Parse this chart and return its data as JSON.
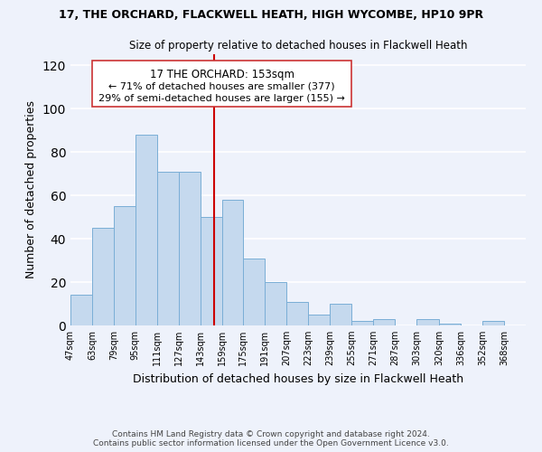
{
  "title": "17, THE ORCHARD, FLACKWELL HEATH, HIGH WYCOMBE, HP10 9PR",
  "subtitle": "Size of property relative to detached houses in Flackwell Heath",
  "xlabel": "Distribution of detached houses by size in Flackwell Heath",
  "ylabel": "Number of detached properties",
  "bar_color": "#c5d9ee",
  "bar_edge_color": "#7aaed6",
  "background_color": "#eef2fb",
  "grid_color": "white",
  "vline_value": 153,
  "vline_color": "#cc0000",
  "annotation_title": "17 THE ORCHARD: 153sqm",
  "annotation_line1": "← 71% of detached houses are smaller (377)",
  "annotation_line2": "29% of semi-detached houses are larger (155) →",
  "bin_labels": [
    "47sqm",
    "63sqm",
    "79sqm",
    "95sqm",
    "111sqm",
    "127sqm",
    "143sqm",
    "159sqm",
    "175sqm",
    "191sqm",
    "207sqm",
    "223sqm",
    "239sqm",
    "255sqm",
    "271sqm",
    "287sqm",
    "303sqm",
    "320sqm",
    "336sqm",
    "352sqm",
    "368sqm"
  ],
  "bin_edges": [
    47,
    63,
    79,
    95,
    111,
    127,
    143,
    159,
    175,
    191,
    207,
    223,
    239,
    255,
    271,
    287,
    303,
    320,
    336,
    352,
    368,
    384
  ],
  "bar_heights": [
    14,
    45,
    55,
    88,
    71,
    71,
    50,
    58,
    31,
    20,
    11,
    5,
    10,
    2,
    3,
    0,
    3,
    1,
    0,
    2,
    0
  ],
  "ylim": [
    0,
    125
  ],
  "yticks": [
    0,
    20,
    40,
    60,
    80,
    100,
    120
  ],
  "footer_line1": "Contains HM Land Registry data © Crown copyright and database right 2024.",
  "footer_line2": "Contains public sector information licensed under the Open Government Licence v3.0."
}
